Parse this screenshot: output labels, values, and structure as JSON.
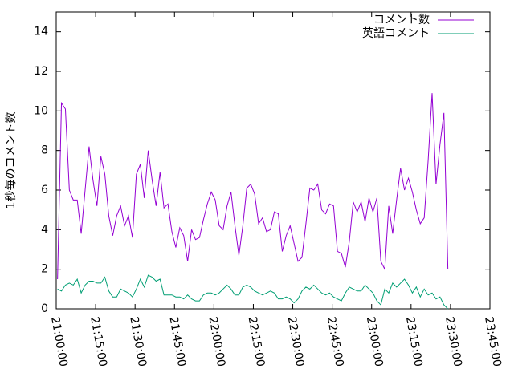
{
  "chart_data": {
    "type": "line",
    "y_label": "1秒毎のコメント数",
    "x": [
      "21:00:30",
      "21:02:00",
      "21:03:30",
      "21:05:00",
      "21:06:30",
      "21:08:00",
      "21:09:30",
      "21:11:00",
      "21:12:30",
      "21:14:00",
      "21:15:30",
      "21:17:00",
      "21:18:30",
      "21:20:00",
      "21:21:30",
      "21:23:00",
      "21:24:30",
      "21:26:00",
      "21:27:30",
      "21:29:00",
      "21:30:30",
      "21:32:00",
      "21:33:30",
      "21:35:00",
      "21:36:30",
      "21:38:00",
      "21:39:30",
      "21:41:00",
      "21:42:30",
      "21:44:00",
      "21:45:30",
      "21:47:00",
      "21:48:30",
      "21:50:00",
      "21:51:30",
      "21:53:00",
      "21:54:30",
      "21:56:00",
      "21:57:30",
      "21:59:00",
      "22:00:30",
      "22:02:00",
      "22:03:30",
      "22:05:00",
      "22:06:30",
      "22:08:00",
      "22:09:30",
      "22:11:00",
      "22:12:30",
      "22:14:00",
      "22:15:30",
      "22:17:00",
      "22:18:30",
      "22:20:00",
      "22:21:30",
      "22:23:00",
      "22:24:30",
      "22:26:00",
      "22:27:30",
      "22:29:00",
      "22:30:30",
      "22:32:00",
      "22:33:30",
      "22:35:00",
      "22:36:30",
      "22:38:00",
      "22:39:30",
      "22:41:00",
      "22:42:30",
      "22:44:00",
      "22:45:30",
      "22:47:00",
      "22:48:30",
      "22:50:00",
      "22:51:30",
      "22:53:00",
      "22:54:30",
      "22:56:00",
      "22:57:30",
      "22:59:00",
      "23:00:30",
      "23:02:00",
      "23:03:30",
      "23:05:00",
      "23:06:30",
      "23:08:00",
      "23:09:30",
      "23:11:00",
      "23:12:30",
      "23:14:00",
      "23:15:30",
      "23:17:00",
      "23:18:30",
      "23:20:00",
      "23:21:30",
      "23:23:00",
      "23:24:30",
      "23:26:00",
      "23:27:30",
      "23:29:00"
    ],
    "series": [
      {
        "name": "コメント数",
        "color": "#9400d3",
        "values": [
          1.5,
          10.4,
          10.1,
          6.0,
          5.5,
          5.5,
          3.8,
          6.0,
          8.2,
          6.5,
          5.2,
          7.7,
          6.8,
          4.7,
          3.7,
          4.7,
          5.2,
          4.2,
          4.7,
          3.6,
          6.8,
          7.3,
          5.6,
          8.0,
          6.5,
          5.2,
          6.9,
          5.1,
          5.3,
          3.9,
          3.1,
          4.1,
          3.7,
          2.4,
          4.0,
          3.5,
          3.6,
          4.5,
          5.3,
          5.9,
          5.5,
          4.2,
          4.0,
          5.2,
          5.9,
          4.2,
          2.7,
          4.2,
          6.1,
          6.3,
          5.8,
          4.3,
          4.6,
          3.9,
          4.0,
          4.9,
          4.8,
          2.9,
          3.7,
          4.2,
          3.3,
          2.4,
          2.6,
          4.3,
          6.1,
          6.0,
          6.3,
          5.0,
          4.8,
          5.3,
          5.2,
          2.9,
          2.8,
          2.1,
          3.4,
          5.4,
          4.9,
          5.4,
          4.4,
          5.6,
          4.9,
          5.6,
          2.4,
          2.0,
          5.2,
          3.8,
          5.5,
          7.1,
          6.0,
          6.6,
          5.9,
          5.0,
          4.3,
          4.6,
          7.5,
          10.9,
          6.3,
          8.3,
          9.9,
          2.0
        ]
      },
      {
        "name": "英語コメント",
        "color": "#009e73",
        "values": [
          1.0,
          0.9,
          1.2,
          1.3,
          1.2,
          1.5,
          0.8,
          1.2,
          1.4,
          1.4,
          1.3,
          1.3,
          1.6,
          0.9,
          0.6,
          0.6,
          1.0,
          0.9,
          0.8,
          0.6,
          1.0,
          1.5,
          1.1,
          1.7,
          1.6,
          1.4,
          1.5,
          0.7,
          0.7,
          0.7,
          0.6,
          0.6,
          0.5,
          0.7,
          0.5,
          0.4,
          0.4,
          0.7,
          0.8,
          0.8,
          0.7,
          0.8,
          1.0,
          1.2,
          1.0,
          0.7,
          0.7,
          1.1,
          1.2,
          1.1,
          0.9,
          0.8,
          0.7,
          0.8,
          0.9,
          0.8,
          0.5,
          0.5,
          0.6,
          0.5,
          0.3,
          0.5,
          0.9,
          1.1,
          1.0,
          1.2,
          1.0,
          0.8,
          0.7,
          0.8,
          0.6,
          0.5,
          0.4,
          0.8,
          1.1,
          1.0,
          0.9,
          0.9,
          1.2,
          1.0,
          0.8,
          0.4,
          0.2,
          1.0,
          0.8,
          1.3,
          1.1,
          1.3,
          1.5,
          1.2,
          0.8,
          1.1,
          0.6,
          1.0,
          0.7,
          0.8,
          0.5,
          0.6,
          0.2,
          0.0
        ]
      }
    ],
    "xlim": [
      "21:00:00",
      "23:45:00"
    ],
    "xticks": [
      "21:00:00",
      "21:15:00",
      "21:30:00",
      "21:45:00",
      "22:00:00",
      "22:15:00",
      "22:30:00",
      "22:45:00",
      "23:00:00",
      "23:15:00",
      "23:30:00",
      "23:45:00"
    ],
    "ylim": [
      0,
      15
    ],
    "yticks": [
      0,
      2,
      4,
      6,
      8,
      10,
      12,
      14
    ],
    "legend": "top right"
  }
}
